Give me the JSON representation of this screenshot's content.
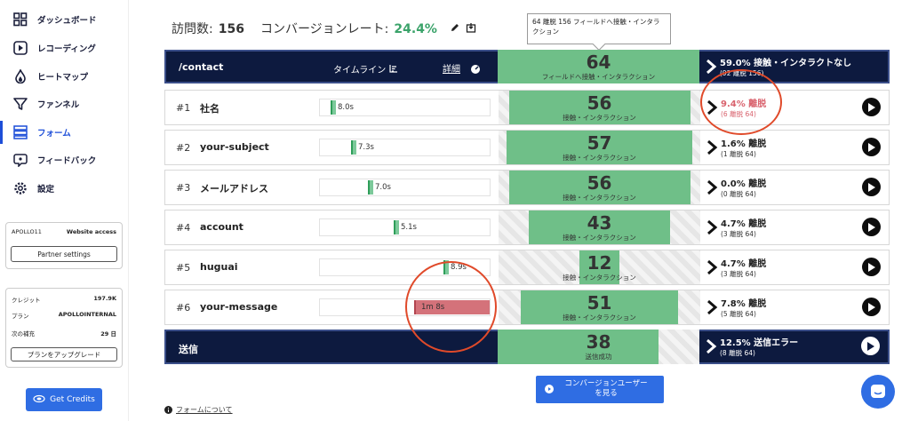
{
  "sidebar": {
    "items": [
      {
        "label": "ダッシュボード",
        "icon": "grid-icon"
      },
      {
        "label": "レコーディング",
        "icon": "play-icon"
      },
      {
        "label": "ヒートマップ",
        "icon": "flame-icon"
      },
      {
        "label": "ファンネル",
        "icon": "funnel-icon"
      },
      {
        "label": "フォーム",
        "icon": "form-icon",
        "active": true
      },
      {
        "label": "フィードバック",
        "icon": "feedback-icon"
      },
      {
        "label": "設定",
        "icon": "gear-icon"
      }
    ],
    "site": {
      "name": "APOLLO11",
      "access": "Website access",
      "partner_button": "Partner settings"
    },
    "plan": {
      "credit_label": "クレジット",
      "credit_value": "197.9K",
      "plan_label": "プラン",
      "plan_value": "APOLLOINTERNAL",
      "refill_label": "次の補充",
      "refill_value": "29 日",
      "upgrade_button": "プランをアップグレード"
    },
    "get_credits": "Get Credits"
  },
  "stats": {
    "visits_label": "訪問数:",
    "visits_value": "156",
    "conv_label": "コンバージョンレート:",
    "conv_value": "24.4%"
  },
  "tooltip": "64 離脱 156 フィールドへ接触・インタラクション",
  "header": {
    "path": "/contact",
    "timeline_label": "タイムライン",
    "details_label": "詳細",
    "center_num": "64",
    "center_sub": "フィールドへ接触・インタラクション",
    "right_title": "59.0% 接触・インタラクトなし",
    "right_sub": "(92 離脱 156)"
  },
  "fields": [
    {
      "rank": "#1",
      "name": "社名",
      "time": "8.0s",
      "time_frac": 0.07,
      "count": "56",
      "count_frac": 0.9,
      "count_sub": "接触・インタラクション",
      "drop_title": "9.4% 離脱",
      "drop_sub": "(6 離脱 64)",
      "highlight": true
    },
    {
      "rank": "#2",
      "name": "your-subject",
      "time": "7.3s",
      "time_frac": 0.19,
      "count": "57",
      "count_frac": 0.92,
      "count_sub": "接触・インタラクション",
      "drop_title": "1.6% 離脱",
      "drop_sub": "(1 離脱 64)"
    },
    {
      "rank": "#3",
      "name": "メールアドレス",
      "time": "7.0s",
      "time_frac": 0.29,
      "count": "56",
      "count_frac": 0.9,
      "count_sub": "接触・インタラクション",
      "drop_title": "0.0% 離脱",
      "drop_sub": "(0 離脱 64)"
    },
    {
      "rank": "#4",
      "name": "account",
      "time": "5.1s",
      "time_frac": 0.44,
      "count": "43",
      "count_frac": 0.7,
      "count_sub": "接触・インタラクション",
      "drop_title": "4.7% 離脱",
      "drop_sub": "(3 離脱 64)"
    },
    {
      "rank": "#5",
      "name": "huguai",
      "time": "8.9s",
      "time_frac": 0.75,
      "count": "12",
      "count_frac": 0.2,
      "count_sub": "接触・インタラクション",
      "drop_title": "4.7% 離脱",
      "drop_sub": "(3 離脱 64)"
    },
    {
      "rank": "#6",
      "name": "your-message",
      "time": "1m 8s",
      "time_frac": 0.55,
      "count": "51",
      "count_frac": 0.78,
      "count_sub": "接触・インタラクション",
      "drop_title": "7.8% 離脱",
      "drop_sub": "(5 離脱 64)",
      "slow": true
    }
  ],
  "submit": {
    "name": "送信",
    "center_num": "38",
    "center_sub": "送信成功",
    "right_title": "12.5% 送信エラー",
    "right_sub": "(8 離脱 64)"
  },
  "conv_button": "コンバージョンユーザー\nを見る",
  "about_link": "フォームについて"
}
